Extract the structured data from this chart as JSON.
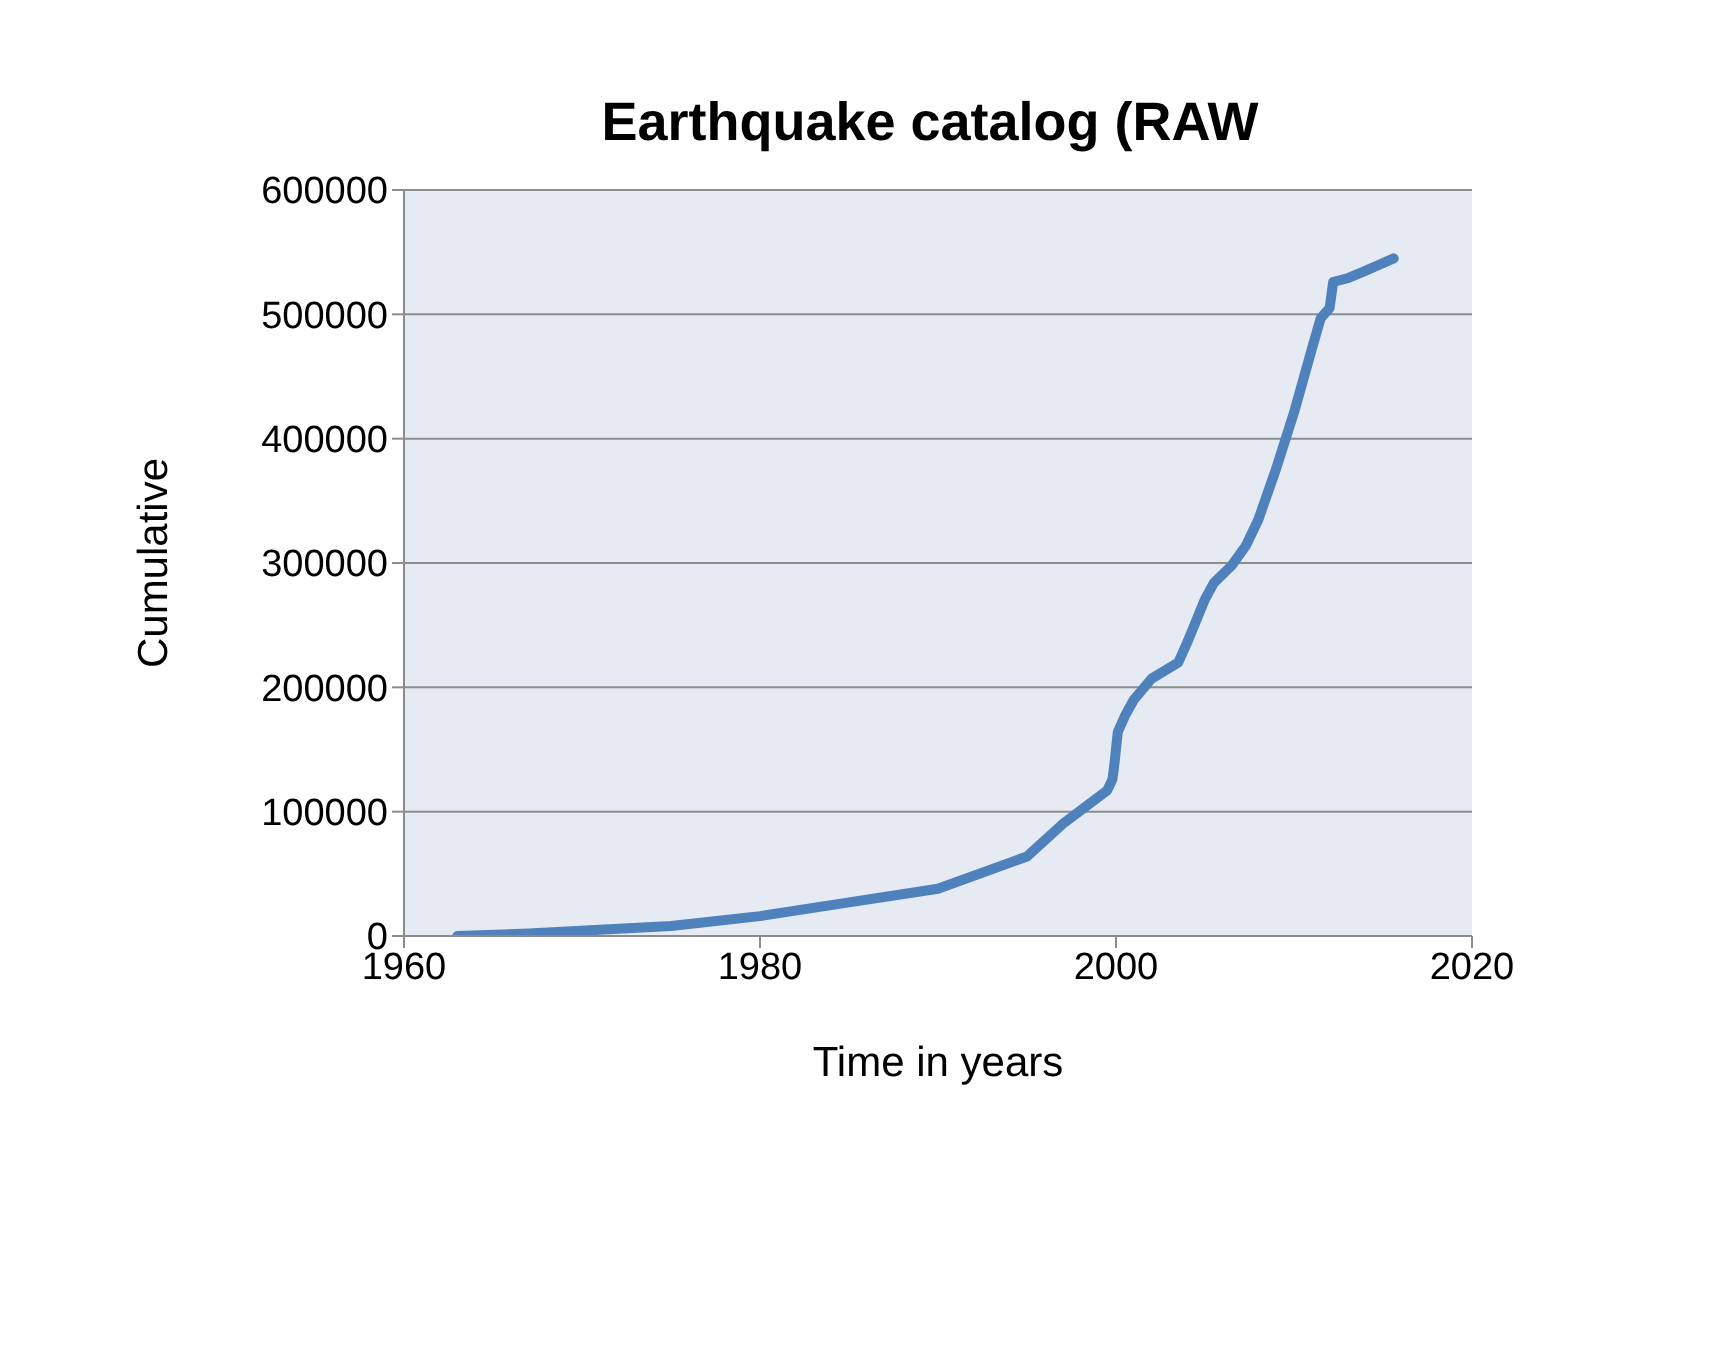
{
  "chart_data": {
    "type": "line",
    "title": "Earthquake catalog (RAW",
    "xlabel": "Time in years",
    "ylabel": "Cumulative",
    "series": [
      {
        "color": "#4f81bd",
        "x": [
          1963,
          1967,
          1971,
          1975,
          1980,
          1985,
          1990,
          1995,
          1997,
          1999.5,
          1999.8,
          1999.9,
          2000.1,
          2000.5,
          2001,
          2002,
          2003.5,
          2004,
          2005,
          2005.5,
          2006.5,
          2007.3,
          2008,
          2009,
          2010,
          2011,
          2011.5,
          2012,
          2012.2,
          2013,
          2014,
          2015.6
        ],
        "values": [
          0,
          2000,
          5000,
          8000,
          16000,
          27000,
          38000,
          64000,
          90000,
          117000,
          126000,
          137000,
          164000,
          177000,
          190000,
          207000,
          220000,
          236000,
          271000,
          284000,
          298000,
          314000,
          335000,
          376000,
          421000,
          472000,
          497000,
          505000,
          526000,
          529000,
          535000,
          545000
        ]
      }
    ],
    "xlim": [
      1960,
      2020
    ],
    "xticks": [
      1960,
      1980,
      2000,
      2020
    ],
    "ylim": [
      0,
      600000
    ],
    "yticks": [
      0,
      100000,
      200000,
      300000,
      400000,
      500000,
      600000
    ],
    "grid": "y",
    "legend": false,
    "marker": "none",
    "line_style": "solid"
  }
}
